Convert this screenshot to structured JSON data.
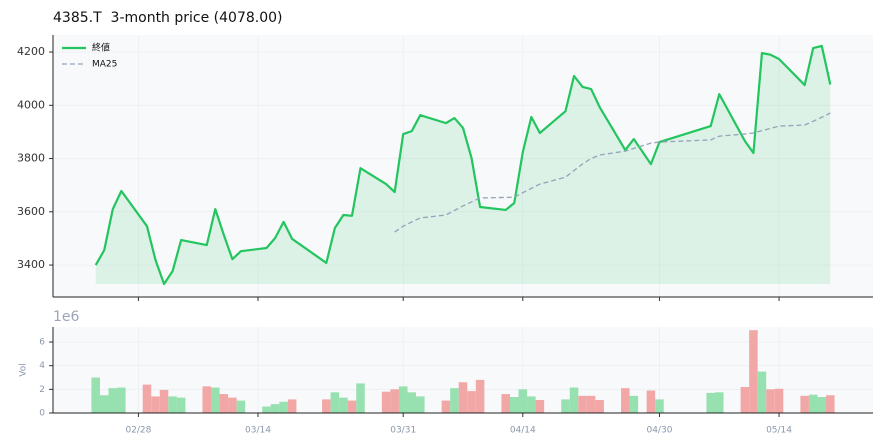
{
  "chart_data": [
    {
      "type": "line",
      "title": "4385.T  3-month price (4078.00)",
      "x": [
        "02/23",
        "02/24",
        "02/25",
        "02/26",
        "03/01",
        "03/02",
        "03/03",
        "03/04",
        "03/05",
        "03/08",
        "03/09",
        "03/10",
        "03/11",
        "03/12",
        "03/15",
        "03/16",
        "03/17",
        "03/18",
        "03/22",
        "03/23",
        "03/24",
        "03/25",
        "03/26",
        "03/29",
        "03/30",
        "03/31",
        "04/01",
        "04/02",
        "04/05",
        "04/06",
        "04/07",
        "04/08",
        "04/09",
        "04/12",
        "04/13",
        "04/14",
        "04/15",
        "04/16",
        "04/19",
        "04/20",
        "04/21",
        "04/22",
        "04/23",
        "04/26",
        "04/27",
        "04/29",
        "04/30",
        "05/06",
        "05/07",
        "05/10",
        "05/11",
        "05/12",
        "05/13",
        "05/14",
        "05/17",
        "05/18",
        "05/19",
        "05/20"
      ],
      "series": [
        {
          "name": "終値",
          "color": "#22c55e",
          "fill": true,
          "dashed": false,
          "values": [
            3400,
            3456,
            3610,
            3678,
            3546,
            3419,
            3329,
            3377,
            3494,
            3475,
            3610,
            3513,
            3422,
            3452,
            3464,
            3501,
            3562,
            3498,
            3408,
            3539,
            3588,
            3585,
            3764,
            3704,
            3674,
            3892,
            3903,
            3963,
            3933,
            3952,
            3915,
            3802,
            3618,
            3607,
            3633,
            3824,
            3956,
            3896,
            3978,
            4110,
            4069,
            4061,
            3993,
            3832,
            3873,
            3779,
            3862,
            3922,
            4042,
            3866,
            3821,
            4196,
            4190,
            4174,
            4076,
            4215,
            4223,
            4078
          ]
        },
        {
          "name": "MA25",
          "color": "#94a3b8",
          "fill": false,
          "dashed": true,
          "values": [
            null,
            null,
            null,
            null,
            null,
            null,
            null,
            null,
            null,
            null,
            null,
            null,
            null,
            null,
            null,
            null,
            null,
            null,
            null,
            null,
            null,
            null,
            null,
            null,
            3524,
            3546,
            3562,
            3577,
            3588,
            3605,
            3622,
            3637,
            3652,
            3654,
            3655,
            3672,
            3688,
            3704,
            3730,
            3755,
            3780,
            3800,
            3813,
            3828,
            3838,
            3858,
            3862,
            3870,
            3884,
            3892,
            3896,
            3905,
            3913,
            3922,
            3926,
            3940,
            3955,
            3971
          ]
        }
      ],
      "xlim": [
        "02/18",
        "05/25"
      ],
      "xticks": [
        "02/28",
        "03/14",
        "03/31",
        "04/14",
        "04/30",
        "05/14"
      ],
      "ylim": [
        3280,
        4264
      ],
      "yticks": [
        3400,
        3600,
        3800,
        4000,
        4200
      ],
      "grid": true,
      "legend": "upper left"
    },
    {
      "type": "bar",
      "ylabel": "Vol",
      "y_offset_label": "1e6",
      "x": [
        "02/23",
        "02/24",
        "02/25",
        "02/26",
        "03/01",
        "03/02",
        "03/03",
        "03/04",
        "03/05",
        "03/08",
        "03/09",
        "03/10",
        "03/11",
        "03/12",
        "03/15",
        "03/16",
        "03/17",
        "03/18",
        "03/22",
        "03/23",
        "03/24",
        "03/25",
        "03/26",
        "03/29",
        "03/30",
        "03/31",
        "04/01",
        "04/02",
        "04/05",
        "04/06",
        "04/07",
        "04/08",
        "04/09",
        "04/12",
        "04/13",
        "04/14",
        "04/15",
        "04/16",
        "04/19",
        "04/20",
        "04/21",
        "04/22",
        "04/23",
        "04/26",
        "04/27",
        "04/29",
        "04/30",
        "05/06",
        "05/07",
        "05/10",
        "05/11",
        "05/12",
        "05/13",
        "05/14",
        "05/17",
        "05/18",
        "05/19",
        "05/20"
      ],
      "values": [
        3.0,
        1.5,
        2.1,
        2.15,
        2.4,
        1.4,
        1.95,
        1.4,
        1.3,
        2.25,
        2.15,
        1.6,
        1.3,
        1.05,
        0.55,
        0.75,
        0.95,
        1.15,
        1.15,
        1.75,
        1.3,
        1.05,
        2.5,
        1.8,
        2.0,
        2.25,
        1.75,
        1.4,
        1.05,
        2.1,
        2.6,
        1.85,
        2.8,
        1.6,
        1.35,
        2.0,
        1.4,
        1.1,
        1.15,
        2.15,
        1.45,
        1.45,
        1.1,
        2.1,
        1.45,
        1.9,
        1.15,
        1.7,
        1.75,
        2.2,
        7.0,
        3.5,
        2.0,
        2.05,
        1.45,
        1.55,
        1.35,
        1.5
      ],
      "colors": [
        "#97e0b0",
        "#97e0b0",
        "#97e0b0",
        "#97e0b0",
        "#f2a7a7",
        "#f2a7a7",
        "#f2a7a7",
        "#97e0b0",
        "#97e0b0",
        "#f2a7a7",
        "#97e0b0",
        "#f2a7a7",
        "#f2a7a7",
        "#97e0b0",
        "#97e0b0",
        "#97e0b0",
        "#97e0b0",
        "#f2a7a7",
        "#f2a7a7",
        "#97e0b0",
        "#97e0b0",
        "#f2a7a7",
        "#97e0b0",
        "#f2a7a7",
        "#f2a7a7",
        "#97e0b0",
        "#97e0b0",
        "#97e0b0",
        "#f2a7a7",
        "#97e0b0",
        "#f2a7a7",
        "#f2a7a7",
        "#f2a7a7",
        "#f2a7a7",
        "#97e0b0",
        "#97e0b0",
        "#97e0b0",
        "#f2a7a7",
        "#97e0b0",
        "#97e0b0",
        "#f2a7a7",
        "#f2a7a7",
        "#f2a7a7",
        "#f2a7a7",
        "#97e0b0",
        "#f2a7a7",
        "#97e0b0",
        "#97e0b0",
        "#97e0b0",
        "#f2a7a7",
        "#f2a7a7",
        "#97e0b0",
        "#f2a7a7",
        "#f2a7a7",
        "#f2a7a7",
        "#97e0b0",
        "#97e0b0",
        "#f2a7a7"
      ],
      "xlim": [
        "02/18",
        "05/25"
      ],
      "xticks": [
        "02/28",
        "03/14",
        "03/31",
        "04/14",
        "04/30",
        "05/14"
      ],
      "ylim": [
        0,
        7.27
      ],
      "yticks": [
        0,
        2,
        4,
        6
      ],
      "grid": true
    }
  ]
}
